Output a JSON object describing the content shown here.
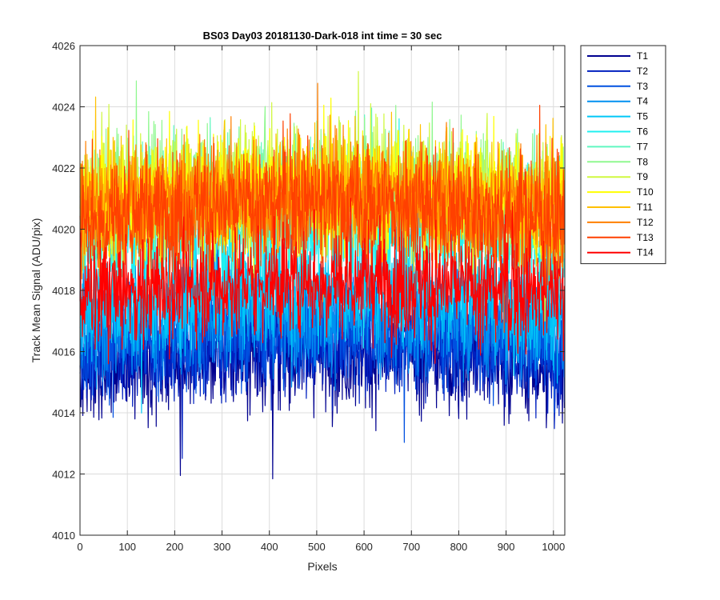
{
  "chart_data": {
    "type": "line",
    "title": "BS03 Day03 20181130-Dark-018 int time = 30 sec",
    "xlabel": "Pixels",
    "ylabel": "Track Mean Signal (ADU/pix)",
    "xlim": [
      0,
      1024
    ],
    "ylim": [
      4010,
      4026
    ],
    "xticks": [
      "0",
      "100",
      "200",
      "300",
      "400",
      "500",
      "600",
      "700",
      "800",
      "900",
      "1000"
    ],
    "yticks": [
      "4010",
      "4012",
      "4014",
      "4016",
      "4018",
      "4020",
      "4022",
      "4024",
      "4026"
    ],
    "grid": true,
    "legend_position": "outside-top-right",
    "n_points": 1024,
    "series": [
      {
        "name": "T1",
        "color": "#00008F",
        "mean": 4015.5,
        "spread": 0.9
      },
      {
        "name": "T2",
        "color": "#0020C0",
        "mean": 4015.9,
        "spread": 0.9
      },
      {
        "name": "T3",
        "color": "#0050E0",
        "mean": 4016.3,
        "spread": 0.9
      },
      {
        "name": "T4",
        "color": "#0090F0",
        "mean": 4016.8,
        "spread": 0.9
      },
      {
        "name": "T5",
        "color": "#00C8F8",
        "mean": 4017.5,
        "spread": 0.9
      },
      {
        "name": "T6",
        "color": "#20F0F0",
        "mean": 4019.5,
        "spread": 1.0
      },
      {
        "name": "T7",
        "color": "#60F8C0",
        "mean": 4020.5,
        "spread": 1.0
      },
      {
        "name": "T8",
        "color": "#90F890",
        "mean": 4021.0,
        "spread": 1.0
      },
      {
        "name": "T9",
        "color": "#D0F840",
        "mean": 4021.0,
        "spread": 1.0
      },
      {
        "name": "T10",
        "color": "#FFFF00",
        "mean": 4020.8,
        "spread": 1.0
      },
      {
        "name": "T11",
        "color": "#FFC000",
        "mean": 4020.6,
        "spread": 1.0
      },
      {
        "name": "T12",
        "color": "#FF8000",
        "mean": 4020.6,
        "spread": 1.0
      },
      {
        "name": "T13",
        "color": "#FF4000",
        "mean": 4020.3,
        "spread": 1.0
      },
      {
        "name": "T14",
        "color": "#FF0000",
        "mean": 4017.8,
        "spread": 0.9
      }
    ]
  }
}
